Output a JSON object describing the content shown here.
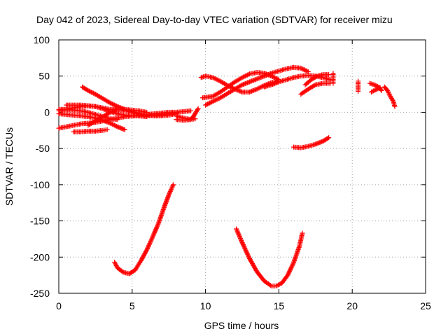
{
  "chart_data": {
    "type": "scatter",
    "title": "Day 042 of 2023, Sidereal Day-to-day VTEC variation (SDTVAR) for receiver mizu",
    "xlabel": "GPS time / hours",
    "ylabel": "SDTVAR / TECUs",
    "xlim": [
      0,
      25
    ],
    "ylim": [
      -250,
      100
    ],
    "xticks": [
      0,
      5,
      10,
      15,
      20,
      25
    ],
    "yticks": [
      -250,
      -200,
      -150,
      -100,
      -50,
      0,
      50,
      100
    ],
    "grid": true,
    "marker": "+",
    "color": "#ff0000",
    "series": [
      {
        "x": [
          0.0,
          0.5,
          1.0,
          1.5,
          2.0,
          2.5,
          3.0,
          3.5,
          4.0,
          4.5,
          5.0,
          5.5,
          6.0
        ],
        "y": [
          2,
          4,
          6,
          8,
          9,
          8,
          5,
          1,
          -2,
          -4,
          -5,
          -5,
          -6
        ]
      },
      {
        "x": [
          0.0,
          0.5,
          1.0,
          1.5,
          2.0,
          2.5,
          3.0,
          3.5,
          4.0
        ],
        "y": [
          4,
          4,
          3,
          2,
          0,
          -3,
          -6,
          -9,
          -10
        ]
      },
      {
        "x": [
          0.0,
          0.5,
          1.0,
          1.5,
          2.0,
          2.5,
          3.0,
          3.5,
          4.0,
          4.5
        ],
        "y": [
          -2,
          -3,
          -4,
          -5,
          -6,
          -8,
          -11,
          -15,
          -20,
          -24
        ]
      },
      {
        "x": [
          0.5,
          1.0,
          1.5,
          2.0,
          2.5,
          3.0,
          3.5,
          4.0,
          4.5,
          5.0,
          5.5,
          6.0
        ],
        "y": [
          10,
          10,
          10,
          9,
          8,
          6,
          4,
          4,
          4,
          3,
          2,
          0
        ]
      },
      {
        "x": [
          1.6,
          2.0,
          2.5,
          3.0,
          3.5,
          4.0,
          4.5,
          5.0,
          5.5,
          6.0,
          6.5,
          7.0,
          7.5,
          8.0
        ],
        "y": [
          35,
          30,
          25,
          19,
          13,
          8,
          4,
          1,
          -2,
          -4,
          -5,
          -5,
          -4,
          -2
        ]
      },
      {
        "x": [
          0.0,
          0.5,
          1.0,
          1.5,
          2.0,
          2.5,
          3.0,
          3.5,
          4.0,
          4.5,
          5.0,
          5.5,
          6.0,
          6.5,
          7.0,
          7.5,
          8.0,
          8.5,
          9.0
        ],
        "y": [
          -22,
          -20,
          -18,
          -16,
          -15,
          -14,
          -12,
          -10,
          -8,
          -6,
          -5,
          -4,
          -3,
          -2,
          -1,
          0,
          0,
          1,
          2
        ]
      },
      {
        "x": [
          1.0,
          1.5,
          2.0,
          2.5,
          3.0,
          3.3
        ],
        "y": [
          -27,
          -27,
          -26,
          -26,
          -25,
          -24
        ]
      },
      {
        "x": [
          2.0,
          2.5,
          3.0,
          3.5,
          4.0,
          4.5,
          5.0,
          5.5,
          6.0,
          6.5,
          7.0,
          7.5,
          8.0
        ],
        "y": [
          -18,
          -12,
          -6,
          0,
          4,
          3,
          0,
          -3,
          -5,
          -4,
          -3,
          -2,
          -1
        ]
      },
      {
        "x": [
          8.0,
          8.5,
          9.0,
          9.2,
          9.5
        ],
        "y": [
          -5,
          -8,
          -10,
          -5,
          5
        ]
      },
      {
        "x": [
          8.0,
          8.5,
          9.0,
          9.3
        ],
        "y": [
          -10,
          -11,
          -10,
          -9
        ]
      },
      {
        "x": [
          3.8,
          4.0,
          4.4,
          4.8,
          5.2,
          5.6,
          6.0,
          6.4,
          6.8,
          7.2,
          7.5,
          7.8
        ],
        "y": [
          -207,
          -215,
          -221,
          -223,
          -218,
          -205,
          -190,
          -172,
          -153,
          -130,
          -114,
          -100
        ]
      },
      {
        "x": [
          12.1,
          12.5,
          13.0,
          13.5,
          14.0,
          14.5,
          14.8,
          15.2,
          15.6,
          16.0,
          16.4,
          16.6
        ],
        "y": [
          -161,
          -180,
          -202,
          -220,
          -233,
          -240,
          -240,
          -236,
          -225,
          -208,
          -185,
          -167
        ]
      },
      {
        "x": [
          16.0,
          16.5,
          17.0,
          17.5,
          18.0,
          18.4
        ],
        "y": [
          -48,
          -49,
          -47,
          -44,
          -40,
          -35
        ]
      },
      {
        "x": [
          9.7,
          10.0,
          10.5,
          11.0,
          11.5,
          12.0,
          12.5,
          13.0,
          13.5,
          14.0,
          14.5,
          15.0
        ],
        "y": [
          48,
          50,
          48,
          43,
          37,
          32,
          28,
          28,
          32,
          37,
          41,
          43
        ]
      },
      {
        "x": [
          9.8,
          10.5,
          11.0,
          11.5,
          12.0,
          12.5,
          13.0,
          13.5,
          14.0,
          14.5,
          15.0
        ],
        "y": [
          20,
          22,
          28,
          35,
          42,
          48,
          53,
          55,
          54,
          50,
          45
        ]
      },
      {
        "x": [
          10.0,
          10.5,
          11.0,
          11.5,
          12.0,
          12.5,
          13.0,
          13.5,
          14.0,
          14.5,
          15.0,
          15.5,
          16.0,
          16.5,
          17.0
        ],
        "y": [
          10,
          15,
          20,
          26,
          32,
          38,
          42,
          46,
          50,
          54,
          57,
          60,
          62,
          61,
          56
        ]
      },
      {
        "x": [
          14.0,
          14.5,
          15.0,
          15.5,
          16.0,
          16.5,
          17.0,
          17.5,
          18.0,
          18.5
        ],
        "y": [
          35,
          38,
          42,
          45,
          48,
          50,
          51,
          50,
          48,
          45
        ]
      },
      {
        "x": [
          16.5,
          17.0,
          17.5,
          18.0,
          18.5
        ],
        "y": [
          25,
          32,
          38,
          40,
          40
        ]
      },
      {
        "x": [
          16.8,
          17.2,
          17.6,
          18.0,
          18.4
        ],
        "y": [
          38,
          45,
          50,
          52,
          52
        ]
      },
      {
        "x": [
          18.7,
          18.7,
          18.7
        ],
        "y": [
          40,
          47,
          54
        ]
      },
      {
        "x": [
          20.4,
          20.4,
          20.4
        ],
        "y": [
          29,
          36,
          43
        ]
      },
      {
        "x": [
          21.2,
          21.5,
          21.8,
          22.0
        ],
        "y": [
          40,
          38,
          35,
          30
        ]
      },
      {
        "x": [
          21.3,
          21.6,
          21.9
        ],
        "y": [
          28,
          31,
          34
        ]
      },
      {
        "x": [
          22.2,
          22.4,
          22.6,
          22.8,
          22.9
        ],
        "y": [
          35,
          30,
          22,
          15,
          8
        ]
      }
    ]
  }
}
